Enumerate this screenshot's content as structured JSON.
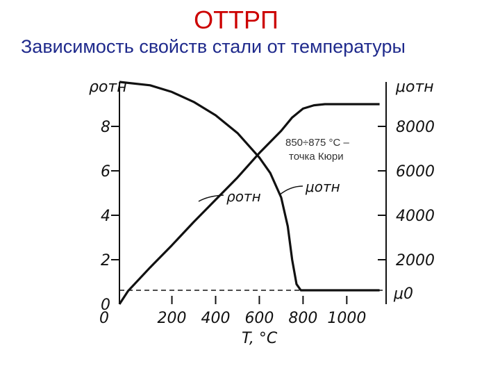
{
  "slide": {
    "title": "ОТТРП",
    "subtitle": "Зависимость свойств стали от температуры"
  },
  "chart_data": {
    "type": "line",
    "xlabel": "T, °C",
    "xlim": [
      -40,
      1180
    ],
    "x_ticks": [
      0,
      200,
      400,
      600,
      800,
      1000
    ],
    "y_left_label": "ρотн",
    "y_left_lim": [
      0,
      10
    ],
    "y_left_ticks": [
      0,
      2,
      4,
      6,
      8
    ],
    "y_right_label": "μотн",
    "y_right_lim": [
      0,
      10000
    ],
    "y_right_ticks": [
      2000,
      4000,
      6000,
      8000
    ],
    "y_right_baseline_label": "μ0",
    "series": [
      {
        "name": "ρотн",
        "axis": "left",
        "x": [
          -40,
          100,
          200,
          300,
          400,
          500,
          600,
          650,
          700,
          730,
          750,
          770,
          790,
          820,
          900,
          1000,
          1100,
          1150
        ],
        "y": [
          10,
          9.85,
          9.55,
          9.1,
          8.5,
          7.7,
          6.6,
          5.9,
          4.8,
          3.5,
          2.0,
          0.9,
          0.35,
          0.1,
          0.05,
          0.05,
          0.05,
          0.05
        ]
      },
      {
        "name": "μотн",
        "axis": "right",
        "x": [
          -40,
          0,
          100,
          200,
          300,
          400,
          500,
          600,
          700,
          750,
          800,
          850,
          900,
          1000,
          1100,
          1150
        ],
        "y": [
          0,
          600,
          1650,
          2650,
          3700,
          4700,
          5700,
          6800,
          7800,
          8400,
          8800,
          8950,
          9000,
          9000,
          9000,
          9000
        ]
      }
    ],
    "mu0_baseline": 0,
    "annotations": [
      {
        "text": "850÷875 °C –"
      },
      {
        "text": "точка Кюри"
      },
      {
        "text": "ρотн"
      },
      {
        "text": "μотн"
      }
    ]
  }
}
